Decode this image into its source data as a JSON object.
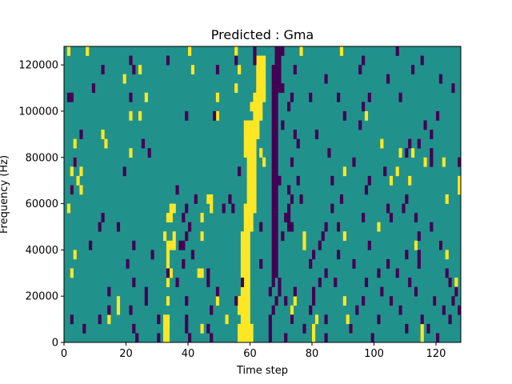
{
  "chart_data": {
    "type": "heatmap",
    "title": "Predicted : Gma",
    "xlabel": "Time step",
    "ylabel": "Frequency (Hz)",
    "xlim": [
      0,
      128
    ],
    "ylim": [
      0,
      128000
    ],
    "x_ticks": [
      0,
      20,
      40,
      60,
      80,
      100,
      120
    ],
    "y_ticks": [
      0,
      20000,
      40000,
      60000,
      80000,
      100000,
      120000
    ],
    "grid": false,
    "rows": 32,
    "cols": 128,
    "value_levels": [
      -1,
      0,
      1
    ],
    "colors": {
      "-1": "#440154",
      "0": "#21918c",
      "1": "#fde725"
    },
    "background_value": 0,
    "cells_positive": [
      [
        1,
        31
      ],
      [
        7,
        31
      ],
      [
        40,
        31
      ],
      [
        55,
        31
      ],
      [
        76,
        31
      ],
      [
        89,
        31
      ],
      [
        62,
        30
      ],
      [
        63,
        30
      ],
      [
        64,
        30
      ],
      [
        24,
        29
      ],
      [
        41,
        29
      ],
      [
        56,
        29
      ],
      [
        62,
        29
      ],
      [
        63,
        29
      ],
      [
        64,
        29
      ],
      [
        19,
        28
      ],
      [
        62,
        28
      ],
      [
        63,
        28
      ],
      [
        64,
        28
      ],
      [
        55,
        27
      ],
      [
        62,
        27
      ],
      [
        63,
        27
      ],
      [
        64,
        27
      ],
      [
        26,
        26
      ],
      [
        49,
        26
      ],
      [
        61,
        26
      ],
      [
        62,
        26
      ],
      [
        63,
        26
      ],
      [
        64,
        26
      ],
      [
        60,
        25
      ],
      [
        61,
        25
      ],
      [
        62,
        25
      ],
      [
        63,
        25
      ],
      [
        21,
        24
      ],
      [
        24,
        24
      ],
      [
        49,
        24
      ],
      [
        61,
        24
      ],
      [
        62,
        24
      ],
      [
        63,
        24
      ],
      [
        97,
        24
      ],
      [
        58,
        23
      ],
      [
        59,
        23
      ],
      [
        60,
        23
      ],
      [
        61,
        23
      ],
      [
        62,
        23
      ],
      [
        12,
        22
      ],
      [
        58,
        22
      ],
      [
        59,
        22
      ],
      [
        60,
        22
      ],
      [
        61,
        22
      ],
      [
        62,
        22
      ],
      [
        3,
        21
      ],
      [
        13,
        21
      ],
      [
        58,
        21
      ],
      [
        59,
        21
      ],
      [
        60,
        21
      ],
      [
        61,
        21
      ],
      [
        102,
        21
      ],
      [
        21,
        20
      ],
      [
        58,
        20
      ],
      [
        59,
        20
      ],
      [
        60,
        20
      ],
      [
        61,
        20
      ],
      [
        63,
        20
      ],
      [
        108,
        20
      ],
      [
        112,
        20
      ],
      [
        3,
        19
      ],
      [
        59,
        19
      ],
      [
        60,
        19
      ],
      [
        61,
        19
      ],
      [
        64,
        19
      ],
      [
        116,
        19
      ],
      [
        122,
        19
      ],
      [
        2,
        18
      ],
      [
        5,
        18
      ],
      [
        59,
        18
      ],
      [
        60,
        18
      ],
      [
        61,
        18
      ],
      [
        90,
        18
      ],
      [
        107,
        18
      ],
      [
        4,
        17
      ],
      [
        59,
        17
      ],
      [
        60,
        17
      ],
      [
        61,
        17
      ],
      [
        105,
        17
      ],
      [
        111,
        17
      ],
      [
        127,
        17
      ],
      [
        2,
        16
      ],
      [
        5,
        16
      ],
      [
        59,
        16
      ],
      [
        60,
        16
      ],
      [
        61,
        16
      ],
      [
        127,
        16
      ],
      [
        46,
        15
      ],
      [
        47,
        15
      ],
      [
        59,
        15
      ],
      [
        60,
        15
      ],
      [
        61,
        15
      ],
      [
        123,
        15
      ],
      [
        1,
        14
      ],
      [
        34,
        14
      ],
      [
        35,
        14
      ],
      [
        47,
        14
      ],
      [
        58,
        14
      ],
      [
        59,
        14
      ],
      [
        60,
        14
      ],
      [
        61,
        14
      ],
      [
        33,
        13
      ],
      [
        34,
        13
      ],
      [
        44,
        13
      ],
      [
        58,
        13
      ],
      [
        59,
        13
      ],
      [
        60,
        13
      ],
      [
        58,
        12
      ],
      [
        59,
        12
      ],
      [
        60,
        12
      ],
      [
        88,
        12
      ],
      [
        101,
        12
      ],
      [
        32,
        11
      ],
      [
        35,
        11
      ],
      [
        44,
        11
      ],
      [
        57,
        11
      ],
      [
        58,
        11
      ],
      [
        59,
        11
      ],
      [
        77,
        11
      ],
      [
        90,
        11
      ],
      [
        33,
        10
      ],
      [
        34,
        10
      ],
      [
        35,
        10
      ],
      [
        57,
        10
      ],
      [
        58,
        10
      ],
      [
        59,
        10
      ],
      [
        77,
        10
      ],
      [
        113,
        10
      ],
      [
        121,
        10
      ],
      [
        3,
        9
      ],
      [
        33,
        9
      ],
      [
        57,
        9
      ],
      [
        58,
        9
      ],
      [
        59,
        9
      ],
      [
        123,
        9
      ],
      [
        33,
        8
      ],
      [
        57,
        8
      ],
      [
        58,
        8
      ],
      [
        59,
        8
      ],
      [
        2,
        7
      ],
      [
        34,
        7
      ],
      [
        43,
        7
      ],
      [
        44,
        7
      ],
      [
        57,
        7
      ],
      [
        58,
        7
      ],
      [
        59,
        7
      ],
      [
        33,
        6
      ],
      [
        57,
        6
      ],
      [
        58,
        6
      ],
      [
        59,
        6
      ],
      [
        126,
        6
      ],
      [
        57,
        5
      ],
      [
        58,
        5
      ],
      [
        59,
        5
      ],
      [
        17,
        4
      ],
      [
        33,
        4
      ],
      [
        49,
        4
      ],
      [
        56,
        4
      ],
      [
        57,
        4
      ],
      [
        58,
        4
      ],
      [
        59,
        4
      ],
      [
        74,
        4
      ],
      [
        90,
        4
      ],
      [
        119,
        4
      ],
      [
        17,
        3
      ],
      [
        56,
        4
      ],
      [
        56,
        3
      ],
      [
        57,
        3
      ],
      [
        58,
        3
      ],
      [
        59,
        3
      ],
      [
        73,
        3
      ],
      [
        14,
        2
      ],
      [
        32,
        2
      ],
      [
        33,
        2
      ],
      [
        52,
        2
      ],
      [
        57,
        2
      ],
      [
        58,
        2
      ],
      [
        59,
        2
      ],
      [
        73,
        2
      ],
      [
        81,
        2
      ],
      [
        91,
        2
      ],
      [
        32,
        1
      ],
      [
        33,
        1
      ],
      [
        44,
        1
      ],
      [
        56,
        1
      ],
      [
        57,
        1
      ],
      [
        58,
        1
      ],
      [
        59,
        1
      ],
      [
        60,
        1
      ],
      [
        80,
        1
      ],
      [
        92,
        1
      ],
      [
        115,
        1
      ],
      [
        32,
        0
      ],
      [
        33,
        0
      ],
      [
        56,
        0
      ],
      [
        57,
        0
      ],
      [
        58,
        0
      ],
      [
        59,
        0
      ],
      [
        60,
        0
      ],
      [
        80,
        0
      ],
      [
        115,
        0
      ]
    ],
    "cells_negative": [
      [
        61,
        31
      ],
      [
        68,
        31
      ],
      [
        69,
        31
      ],
      [
        70,
        31
      ],
      [
        107,
        31
      ],
      [
        21,
        30
      ],
      [
        33,
        30
      ],
      [
        55,
        30
      ],
      [
        61,
        30
      ],
      [
        68,
        30
      ],
      [
        69,
        30
      ],
      [
        96,
        30
      ],
      [
        115,
        30
      ],
      [
        12,
        29
      ],
      [
        22,
        29
      ],
      [
        49,
        29
      ],
      [
        67,
        29
      ],
      [
        68,
        29
      ],
      [
        69,
        29
      ],
      [
        74,
        29
      ],
      [
        95,
        29
      ],
      [
        112,
        29
      ],
      [
        67,
        28
      ],
      [
        68,
        28
      ],
      [
        69,
        28
      ],
      [
        84,
        28
      ],
      [
        104,
        28
      ],
      [
        121,
        28
      ],
      [
        9,
        27
      ],
      [
        67,
        27
      ],
      [
        68,
        27
      ],
      [
        69,
        27
      ],
      [
        70,
        27
      ],
      [
        125,
        27
      ],
      [
        1,
        26
      ],
      [
        2,
        26
      ],
      [
        21,
        26
      ],
      [
        67,
        26
      ],
      [
        68,
        26
      ],
      [
        73,
        26
      ],
      [
        79,
        26
      ],
      [
        88,
        26
      ],
      [
        98,
        26
      ],
      [
        108,
        26
      ],
      [
        67,
        25
      ],
      [
        68,
        25
      ],
      [
        72,
        25
      ],
      [
        96,
        25
      ],
      [
        39,
        24
      ],
      [
        48,
        24
      ],
      [
        67,
        24
      ],
      [
        68,
        24
      ],
      [
        90,
        24
      ],
      [
        120,
        24
      ],
      [
        67,
        23
      ],
      [
        68,
        23
      ],
      [
        70,
        23
      ],
      [
        95,
        23
      ],
      [
        116,
        23
      ],
      [
        5,
        22
      ],
      [
        67,
        22
      ],
      [
        68,
        22
      ],
      [
        74,
        22
      ],
      [
        81,
        22
      ],
      [
        118,
        22
      ],
      [
        25,
        21
      ],
      [
        67,
        21
      ],
      [
        68,
        21
      ],
      [
        75,
        21
      ],
      [
        111,
        21
      ],
      [
        114,
        21
      ],
      [
        27,
        20
      ],
      [
        67,
        20
      ],
      [
        68,
        20
      ],
      [
        85,
        20
      ],
      [
        110,
        20
      ],
      [
        118,
        20
      ],
      [
        3,
        19
      ],
      [
        67,
        19
      ],
      [
        68,
        19
      ],
      [
        73,
        19
      ],
      [
        93,
        19
      ],
      [
        118,
        19
      ],
      [
        127,
        19
      ],
      [
        19,
        18
      ],
      [
        56,
        18
      ],
      [
        67,
        18
      ],
      [
        68,
        18
      ],
      [
        103,
        18
      ],
      [
        67,
        17
      ],
      [
        68,
        17
      ],
      [
        69,
        17
      ],
      [
        75,
        17
      ],
      [
        86,
        17
      ],
      [
        98,
        17
      ],
      [
        2,
        16
      ],
      [
        36,
        16
      ],
      [
        67,
        16
      ],
      [
        68,
        16
      ],
      [
        72,
        16
      ],
      [
        97,
        16
      ],
      [
        42,
        15
      ],
      [
        53,
        15
      ],
      [
        67,
        15
      ],
      [
        68,
        15
      ],
      [
        73,
        15
      ],
      [
        76,
        15
      ],
      [
        89,
        15
      ],
      [
        110,
        15
      ],
      [
        39,
        14
      ],
      [
        51,
        14
      ],
      [
        54,
        14
      ],
      [
        67,
        14
      ],
      [
        68,
        14
      ],
      [
        72,
        14
      ],
      [
        86,
        14
      ],
      [
        104,
        14
      ],
      [
        109,
        14
      ],
      [
        12,
        13
      ],
      [
        38,
        13
      ],
      [
        67,
        13
      ],
      [
        68,
        13
      ],
      [
        71,
        13
      ],
      [
        72,
        13
      ],
      [
        96,
        13
      ],
      [
        105,
        13
      ],
      [
        113,
        13
      ],
      [
        11,
        12
      ],
      [
        17,
        12
      ],
      [
        40,
        12
      ],
      [
        63,
        12
      ],
      [
        67,
        12
      ],
      [
        68,
        12
      ],
      [
        72,
        12
      ],
      [
        73,
        12
      ],
      [
        84,
        12
      ],
      [
        88,
        12
      ],
      [
        118,
        12
      ],
      [
        39,
        11
      ],
      [
        67,
        11
      ],
      [
        68,
        11
      ],
      [
        70,
        11
      ],
      [
        83,
        11
      ],
      [
        114,
        11
      ],
      [
        8,
        10
      ],
      [
        22,
        10
      ],
      [
        37,
        10
      ],
      [
        38,
        10
      ],
      [
        67,
        10
      ],
      [
        68,
        10
      ],
      [
        82,
        10
      ],
      [
        98,
        10
      ],
      [
        121,
        10
      ],
      [
        28,
        9
      ],
      [
        41,
        9
      ],
      [
        67,
        9
      ],
      [
        68,
        9
      ],
      [
        80,
        9
      ],
      [
        88,
        9
      ],
      [
        110,
        9
      ],
      [
        114,
        9
      ],
      [
        20,
        8
      ],
      [
        38,
        8
      ],
      [
        63,
        8
      ],
      [
        67,
        8
      ],
      [
        68,
        8
      ],
      [
        79,
        8
      ],
      [
        93,
        8
      ],
      [
        104,
        8
      ],
      [
        114,
        8
      ],
      [
        33,
        7
      ],
      [
        46,
        7
      ],
      [
        67,
        7
      ],
      [
        68,
        7
      ],
      [
        84,
        7
      ],
      [
        101,
        7
      ],
      [
        107,
        7
      ],
      [
        123,
        7
      ],
      [
        22,
        6
      ],
      [
        36,
        6
      ],
      [
        46,
        6
      ],
      [
        57,
        6
      ],
      [
        67,
        6
      ],
      [
        69,
        6
      ],
      [
        82,
        6
      ],
      [
        87,
        6
      ],
      [
        97,
        6
      ],
      [
        111,
        6
      ],
      [
        124,
        6
      ],
      [
        14,
        5
      ],
      [
        26,
        5
      ],
      [
        49,
        5
      ],
      [
        66,
        5
      ],
      [
        69,
        5
      ],
      [
        74,
        5
      ],
      [
        80,
        5
      ],
      [
        102,
        5
      ],
      [
        113,
        5
      ],
      [
        126,
        5
      ],
      [
        26,
        4
      ],
      [
        39,
        4
      ],
      [
        55,
        4
      ],
      [
        68,
        4
      ],
      [
        71,
        4
      ],
      [
        80,
        4
      ],
      [
        96,
        4
      ],
      [
        105,
        4
      ],
      [
        119,
        4
      ],
      [
        125,
        4
      ],
      [
        14,
        3
      ],
      [
        21,
        3
      ],
      [
        47,
        3
      ],
      [
        67,
        3
      ],
      [
        79,
        3
      ],
      [
        94,
        3
      ],
      [
        108,
        3
      ],
      [
        122,
        3
      ],
      [
        127,
        3
      ],
      [
        2,
        2
      ],
      [
        11,
        2
      ],
      [
        30,
        2
      ],
      [
        39,
        2
      ],
      [
        66,
        2
      ],
      [
        73,
        2
      ],
      [
        84,
        2
      ],
      [
        101,
        2
      ],
      [
        115,
        2
      ],
      [
        124,
        2
      ],
      [
        6,
        1
      ],
      [
        22,
        1
      ],
      [
        39,
        1
      ],
      [
        46,
        1
      ],
      [
        66,
        1
      ],
      [
        77,
        1
      ],
      [
        92,
        1
      ],
      [
        110,
        1
      ],
      [
        117,
        1
      ],
      [
        23,
        0
      ],
      [
        30,
        0
      ],
      [
        40,
        0
      ],
      [
        47,
        0
      ],
      [
        66,
        0
      ],
      [
        71,
        0
      ],
      [
        84,
        0
      ],
      [
        99,
        0
      ],
      [
        120,
        0
      ]
    ]
  }
}
